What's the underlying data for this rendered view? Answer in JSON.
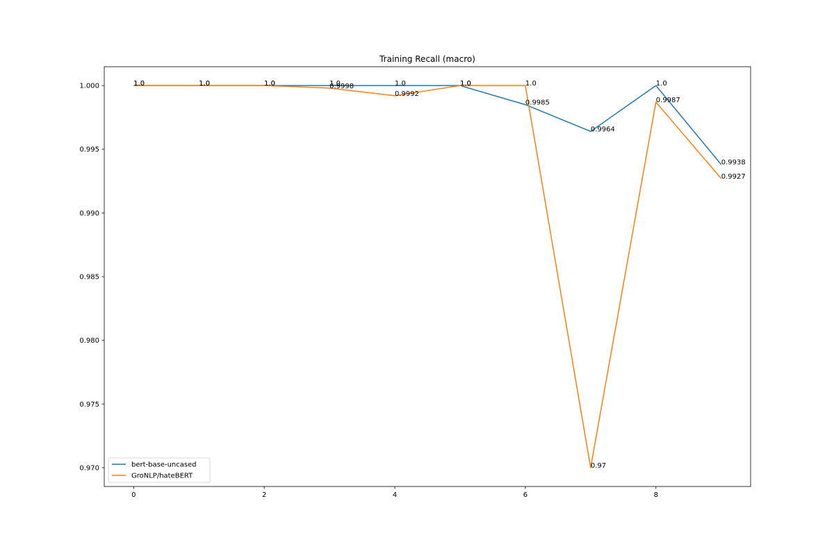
{
  "chart_data": {
    "type": "line",
    "title": "Training Recall (macro)",
    "xlabel": "",
    "ylabel": "",
    "x": [
      0,
      1,
      2,
      3,
      4,
      5,
      6,
      7,
      8,
      9
    ],
    "xlim": [
      -0.45,
      9.45
    ],
    "ylim": [
      0.96852,
      1.00148
    ],
    "xticks": [
      0,
      2,
      4,
      6,
      8
    ],
    "yticks": [
      1.0,
      0.995,
      0.99,
      0.985,
      0.98,
      0.975,
      0.97
    ],
    "ytick_labels": [
      "1.000",
      "0.995",
      "0.990",
      "0.985",
      "0.980",
      "0.975",
      "0.970"
    ],
    "grid": false,
    "legend_position": "lower-left",
    "series": [
      {
        "name": "bert-base-uncased",
        "color": "#1f77b4",
        "values": [
          1.0,
          1.0,
          1.0,
          1.0,
          1.0,
          1.0,
          0.9985,
          0.9964,
          1.0,
          0.9938
        ],
        "labels": [
          "1.0",
          "1.0",
          "1.0",
          "1.0",
          "1.0",
          "1.0",
          "0.9985",
          "0.9964",
          "1.0",
          "0.9938"
        ]
      },
      {
        "name": "GroNLP/hateBERT",
        "color": "#ff7f0e",
        "values": [
          1.0,
          1.0,
          1.0,
          0.9998,
          0.9992,
          1.0,
          1.0,
          0.97,
          0.9987,
          0.9927
        ],
        "labels": [
          "1.0",
          "1.0",
          "1.0",
          "0.9998",
          "0.9992",
          "1.0",
          "1.0",
          "0.97",
          "0.9987",
          "0.9927"
        ]
      }
    ]
  }
}
